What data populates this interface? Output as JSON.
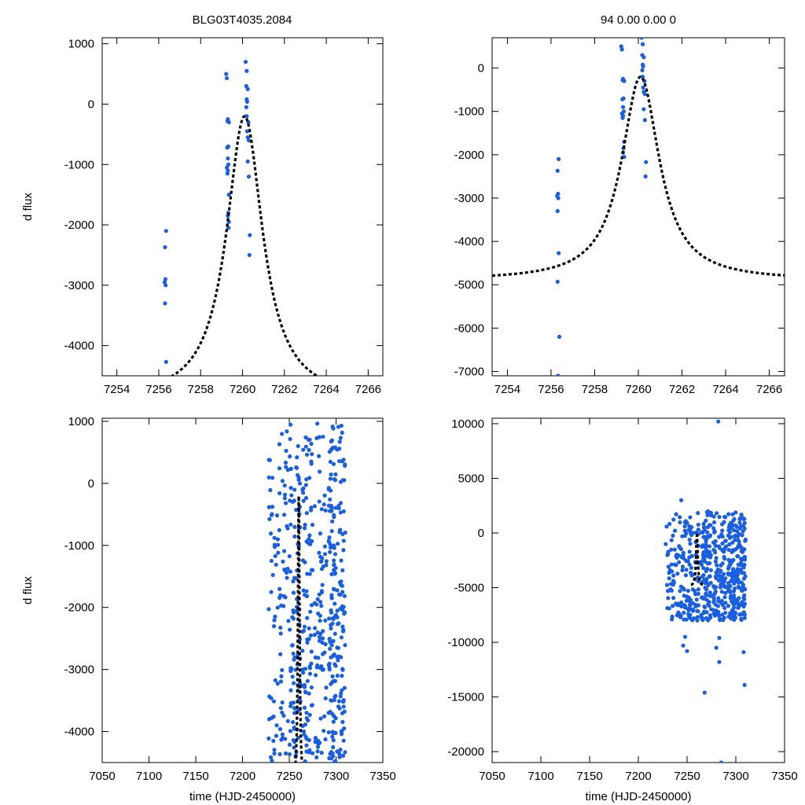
{
  "header": {
    "left_title": "BLG03T4035.2084",
    "right_title": "94  0.00  0.00  0"
  },
  "colors": {
    "points": "#1a5fe0",
    "model": "#000000"
  },
  "chart_data": [
    {
      "id": "top-left",
      "type": "scatter",
      "ylabel": "d flux",
      "xlabel": "",
      "xlim": [
        7253.3,
        7266.7
      ],
      "ylim": [
        -4500,
        1100
      ],
      "xticks": [
        7254,
        7256,
        7258,
        7260,
        7262,
        7264,
        7266
      ],
      "yticks": [
        -4000,
        -3000,
        -2000,
        -1000,
        0,
        1000
      ],
      "model": {
        "name": "model",
        "t0": 7260.1,
        "peak": -200,
        "base": -4900,
        "width": 1.05,
        "xrange": [
          7253.3,
          7266.7
        ]
      },
      "series": [
        {
          "name": "data",
          "x": [
            7256.35,
            7256.3,
            7256.32,
            7256.28,
            7256.33,
            7256.3,
            7256.35,
            7259.22,
            7259.25,
            7259.3,
            7259.28,
            7259.35,
            7259.32,
            7259.27,
            7259.3,
            7259.33,
            7259.25,
            7259.3,
            7259.28,
            7259.35,
            7259.32,
            7259.3,
            7259.35,
            7259.33,
            7260.15,
            7260.2,
            7260.18,
            7260.25,
            7260.2,
            7260.22,
            7260.18,
            7260.2,
            7260.28,
            7260.22,
            7260.25,
            7260.3,
            7260.25,
            7260.3,
            7260.35,
            7260.33
          ],
          "y": [
            -2100,
            -2370,
            -2900,
            -2950,
            -3000,
            -3300,
            -4270,
            500,
            430,
            -250,
            -280,
            -300,
            -700,
            -720,
            -900,
            -1000,
            -1050,
            -1100,
            -1150,
            -1500,
            -1800,
            -1850,
            -1950,
            -2050,
            700,
            550,
            300,
            250,
            80,
            40,
            -50,
            -200,
            -300,
            -450,
            -550,
            -600,
            -950,
            -1200,
            -2170,
            -2500
          ]
        }
      ]
    },
    {
      "id": "top-right",
      "type": "scatter",
      "ylabel": "",
      "xlabel": "",
      "xlim": [
        7253.3,
        7266.7
      ],
      "ylim": [
        -7100,
        700
      ],
      "xticks": [
        7254,
        7256,
        7258,
        7260,
        7262,
        7264,
        7266
      ],
      "yticks": [
        -7000,
        -6000,
        -5000,
        -4000,
        -3000,
        -2000,
        -1000,
        0
      ],
      "model": {
        "name": "model",
        "t0": 7260.1,
        "peak": -200,
        "base": -4900,
        "width": 1.05,
        "xrange": [
          7253.3,
          7266.7
        ]
      },
      "series": [
        {
          "name": "data",
          "x": [
            7256.35,
            7256.3,
            7256.32,
            7256.28,
            7256.33,
            7256.3,
            7256.35,
            7256.3,
            7256.38,
            7256.32,
            7259.22,
            7259.25,
            7259.3,
            7259.28,
            7259.35,
            7259.32,
            7259.27,
            7259.3,
            7259.33,
            7259.25,
            7259.3,
            7259.28,
            7259.35,
            7259.32,
            7259.3,
            7259.35,
            7260.15,
            7260.2,
            7260.18,
            7260.25,
            7260.2,
            7260.22,
            7260.18,
            7260.2,
            7260.28,
            7260.22,
            7260.25,
            7260.3,
            7260.25,
            7260.3,
            7260.35,
            7260.33
          ],
          "y": [
            -2100,
            -2370,
            -2900,
            -2950,
            -3000,
            -3300,
            -4270,
            -4930,
            -6200,
            -7100,
            500,
            430,
            -250,
            -280,
            -300,
            -700,
            -720,
            -900,
            -1000,
            -1050,
            -1100,
            -1150,
            -1700,
            -1850,
            -1950,
            -2050,
            700,
            550,
            300,
            250,
            80,
            40,
            -50,
            -200,
            -300,
            -450,
            -550,
            -600,
            -950,
            -1200,
            -2170,
            -2500
          ]
        }
      ]
    },
    {
      "id": "bottom-left",
      "type": "scatter",
      "ylabel": "d flux",
      "xlabel": "time (HJD-2450000)",
      "xlim": [
        7050,
        7350
      ],
      "ylim": [
        -4500,
        1050
      ],
      "xticks": [
        7050,
        7100,
        7150,
        7200,
        7250,
        7300,
        7350
      ],
      "yticks": [
        -4000,
        -3000,
        -2000,
        -1000,
        0,
        1000
      ],
      "model": {
        "name": "model",
        "t0": 7260.1,
        "peak": -200,
        "base": -4900,
        "width": 1.05,
        "xrange": [
          7250,
          7270
        ]
      },
      "series": [
        {
          "name": "data",
          "season": {
            "min": -4500,
            "max": 1000
          }
        }
      ]
    },
    {
      "id": "bottom-right",
      "type": "scatter",
      "ylabel": "",
      "xlabel": "time (HJD-2450000)",
      "xlim": [
        7050,
        7350
      ],
      "ylim": [
        -21000,
        10500
      ],
      "xticks": [
        7050,
        7100,
        7150,
        7200,
        7250,
        7300,
        7350
      ],
      "yticks": [
        -20000,
        -15000,
        -10000,
        -5000,
        0,
        5000,
        10000
      ],
      "model": {
        "name": "model",
        "t0": 7260.1,
        "peak": -200,
        "base": -4900,
        "width": 1.05,
        "xrange": [
          7254,
          7266
        ]
      },
      "series": [
        {
          "name": "data",
          "season": {
            "min": -8000,
            "max": 2000
          },
          "outliers": {
            "x": [
              7246,
              7248,
              7250,
              7256,
              7268,
              7282,
              7283,
              7283,
              7285,
              7308,
              7309,
              7280,
              7244
            ],
            "y": [
              -10300,
              -9500,
              -10800,
              -7000,
              -14600,
              10200,
              -9600,
              -11800,
              -21000,
              -10900,
              -13900,
              -10500,
              3000
            ]
          }
        }
      ]
    }
  ]
}
